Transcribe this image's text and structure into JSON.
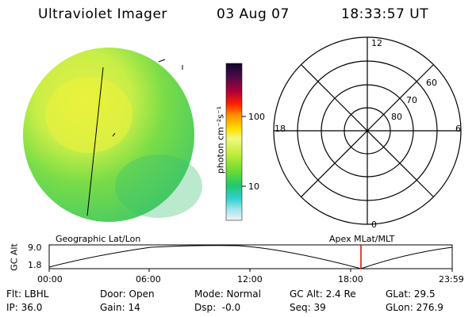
{
  "header": {
    "instrument": "Ultraviolet Imager",
    "date": "03 Aug 07",
    "time": "18:33:57 UT"
  },
  "colorbar": {
    "unit_label": "photon cm⁻²s⁻¹",
    "ticks": [
      "100",
      "10"
    ],
    "colors_top_to_bottom": [
      "#1a0a3a",
      "#3a0a4a",
      "#6a0a50",
      "#a0003a",
      "#e0001a",
      "#ff4a00",
      "#ff9a00",
      "#ffd000",
      "#ffff80",
      "#d8f040",
      "#90e030",
      "#30d050",
      "#10c0a0",
      "#40d0e0",
      "#a0e8f0",
      "#e0f0f0"
    ]
  },
  "polar_plot": {
    "mlt_labels": {
      "top": "12",
      "left": "18",
      "right": "6",
      "bottom": "0"
    },
    "lat_labels": [
      "60",
      "70",
      "80"
    ]
  },
  "timeline": {
    "ylabel": "GC Alt",
    "y_ticks": [
      "9.0",
      "1.8"
    ],
    "left_label": "Geographic Lat/Lon",
    "right_label": "Apex MLat/MLT",
    "x_ticks": [
      "00:00",
      "06:00",
      "12:00",
      "18:00",
      "23:59"
    ]
  },
  "status": {
    "row1": [
      "Flt: LBHL",
      "Door: Open",
      "Mode: Normal",
      "GC Alt: 2.4 Re",
      "GLat: 29.5"
    ],
    "row2": [
      "IP: 36.0",
      "Gain: 14",
      "Dsp:  -0.0",
      "Seq: 39",
      "GLon: 276.9"
    ]
  }
}
